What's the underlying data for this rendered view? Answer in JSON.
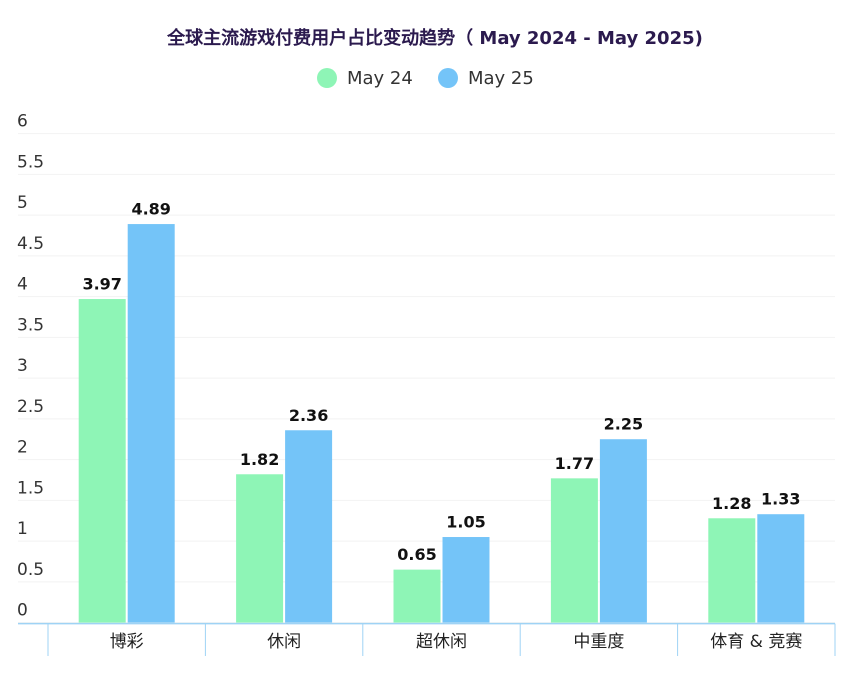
{
  "chart_data": {
    "type": "bar",
    "title": "全球主流游戏付费用户占比变动趋势（ May 2024 - May 2025)",
    "categories": [
      "博彩",
      "休闲",
      "超休闲",
      "中重度",
      "体育 & 竞赛"
    ],
    "series": [
      {
        "name": "May 24",
        "color": "#8ef5b6",
        "values": [
          3.97,
          1.82,
          0.65,
          1.77,
          1.28
        ]
      },
      {
        "name": "May 25",
        "color": "#74c4f8",
        "values": [
          4.89,
          2.36,
          1.05,
          2.25,
          1.33
        ]
      }
    ],
    "ylim": [
      0,
      6
    ],
    "yticks": [
      0,
      0.5,
      1,
      1.5,
      2,
      2.5,
      3,
      3.5,
      4,
      4.5,
      5,
      5.5,
      6
    ],
    "grid": true,
    "legend": "top"
  }
}
